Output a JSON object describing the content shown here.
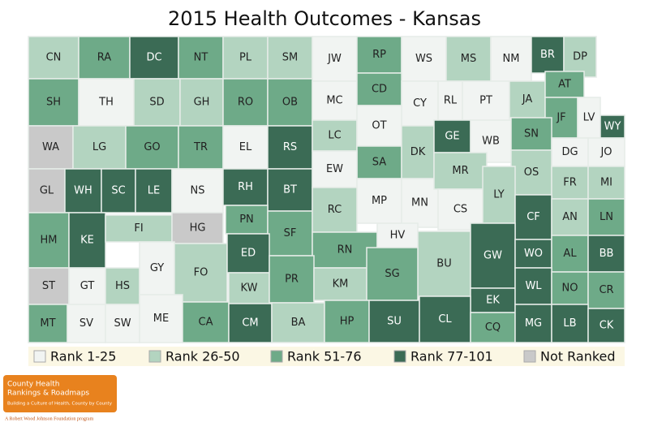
{
  "title": "2015 Health Outcomes - Kansas",
  "legend": [
    {
      "label": "Rank 1-25",
      "color": "#f1f4f2"
    },
    {
      "label": "Rank 26-50",
      "color": "#b3d4c0"
    },
    {
      "label": "Rank 51-76",
      "color": "#6eaa88"
    },
    {
      "label": "Rank 77-101",
      "color": "#3b6b55"
    },
    {
      "label": "Not Ranked",
      "color": "#c9c9c9"
    }
  ],
  "counties": [
    {
      "label": "CN",
      "color": "#b3d4c0"
    },
    {
      "label": "RA",
      "color": "#6eaa88"
    },
    {
      "label": "DC",
      "color": "#3b6b55"
    },
    {
      "label": "NT",
      "color": "#6eaa88"
    },
    {
      "label": "PL",
      "color": "#b3d4c0"
    },
    {
      "label": "SM",
      "color": "#b3d4c0"
    },
    {
      "label": "JW",
      "color": "#f1f4f2"
    },
    {
      "label": "RP",
      "color": "#6eaa88"
    },
    {
      "label": "WS",
      "color": "#f1f4f2"
    },
    {
      "label": "MS",
      "color": "#b3d4c0"
    },
    {
      "label": "NM",
      "color": "#f1f4f2"
    },
    {
      "label": "BR",
      "color": "#3b6b55"
    },
    {
      "label": "DP",
      "color": "#b3d4c0"
    },
    {
      "label": "SH",
      "color": "#6eaa88"
    },
    {
      "label": "TH",
      "color": "#f1f4f2"
    },
    {
      "label": "SD",
      "color": "#b3d4c0"
    },
    {
      "label": "GH",
      "color": "#b3d4c0"
    },
    {
      "label": "RO",
      "color": "#6eaa88"
    },
    {
      "label": "OB",
      "color": "#6eaa88"
    },
    {
      "label": "MC",
      "color": "#f1f4f2"
    },
    {
      "label": "CD",
      "color": "#6eaa88"
    },
    {
      "label": "CY",
      "color": "#f1f4f2"
    },
    {
      "label": "RL",
      "color": "#f1f4f2"
    },
    {
      "label": "PT",
      "color": "#f1f4f2"
    },
    {
      "label": "JA",
      "color": "#b3d4c0"
    },
    {
      "label": "AT",
      "color": "#6eaa88"
    },
    {
      "label": "JF",
      "color": "#6eaa88"
    },
    {
      "label": "LV",
      "color": "#f1f4f2"
    },
    {
      "label": "WY",
      "color": "#3b6b55"
    },
    {
      "label": "WA",
      "color": "#c9c9c9"
    },
    {
      "label": "LG",
      "color": "#b3d4c0"
    },
    {
      "label": "GO",
      "color": "#6eaa88"
    },
    {
      "label": "TR",
      "color": "#6eaa88"
    },
    {
      "label": "EL",
      "color": "#f1f4f2"
    },
    {
      "label": "RS",
      "color": "#3b6b55"
    },
    {
      "label": "LC",
      "color": "#b3d4c0"
    },
    {
      "label": "OT",
      "color": "#f1f4f2"
    },
    {
      "label": "SA",
      "color": "#6eaa88"
    },
    {
      "label": "DK",
      "color": "#b3d4c0"
    },
    {
      "label": "GE",
      "color": "#3b6b55"
    },
    {
      "label": "WB",
      "color": "#f1f4f2"
    },
    {
      "label": "SN",
      "color": "#6eaa88"
    },
    {
      "label": "DG",
      "color": "#f1f4f2"
    },
    {
      "label": "JO",
      "color": "#f1f4f2"
    },
    {
      "label": "OS",
      "color": "#b3d4c0"
    },
    {
      "label": "FR",
      "color": "#b3d4c0"
    },
    {
      "label": "MI",
      "color": "#b3d4c0"
    },
    {
      "label": "GL",
      "color": "#c9c9c9"
    },
    {
      "label": "WH",
      "color": "#3b6b55"
    },
    {
      "label": "SC",
      "color": "#3b6b55"
    },
    {
      "label": "LE",
      "color": "#3b6b55"
    },
    {
      "label": "NS",
      "color": "#f1f4f2"
    },
    {
      "label": "RH",
      "color": "#3b6b55"
    },
    {
      "label": "BT",
      "color": "#3b6b55"
    },
    {
      "label": "EW",
      "color": "#f1f4f2"
    },
    {
      "label": "MP",
      "color": "#f1f4f2"
    },
    {
      "label": "MN",
      "color": "#f1f4f2"
    },
    {
      "label": "MR",
      "color": "#b3d4c0"
    },
    {
      "label": "CS",
      "color": "#f1f4f2"
    },
    {
      "label": "LY",
      "color": "#b3d4c0"
    },
    {
      "label": "CF",
      "color": "#3b6b55"
    },
    {
      "label": "AN",
      "color": "#b3d4c0"
    },
    {
      "label": "LN",
      "color": "#6eaa88"
    },
    {
      "label": "HM",
      "color": "#6eaa88"
    },
    {
      "label": "KE",
      "color": "#3b6b55"
    },
    {
      "label": "FI",
      "color": "#b3d4c0"
    },
    {
      "label": "HG",
      "color": "#c9c9c9"
    },
    {
      "label": "PN",
      "color": "#6eaa88"
    },
    {
      "label": "SF",
      "color": "#6eaa88"
    },
    {
      "label": "RC",
      "color": "#b3d4c0"
    },
    {
      "label": "RN",
      "color": "#6eaa88"
    },
    {
      "label": "HV",
      "color": "#f1f4f2"
    },
    {
      "label": "BU",
      "color": "#b3d4c0"
    },
    {
      "label": "GW",
      "color": "#3b6b55"
    },
    {
      "label": "WO",
      "color": "#3b6b55"
    },
    {
      "label": "AL",
      "color": "#6eaa88"
    },
    {
      "label": "BB",
      "color": "#3b6b55"
    },
    {
      "label": "ST",
      "color": "#c9c9c9"
    },
    {
      "label": "GT",
      "color": "#f1f4f2"
    },
    {
      "label": "HS",
      "color": "#b3d4c0"
    },
    {
      "label": "GY",
      "color": "#f1f4f2"
    },
    {
      "label": "FO",
      "color": "#b3d4c0"
    },
    {
      "label": "ED",
      "color": "#3b6b55"
    },
    {
      "label": "KW",
      "color": "#b3d4c0"
    },
    {
      "label": "PR",
      "color": "#6eaa88"
    },
    {
      "label": "KM",
      "color": "#b3d4c0"
    },
    {
      "label": "SG",
      "color": "#6eaa88"
    },
    {
      "label": "EK",
      "color": "#3b6b55"
    },
    {
      "label": "WL",
      "color": "#3b6b55"
    },
    {
      "label": "NO",
      "color": "#6eaa88"
    },
    {
      "label": "CR",
      "color": "#6eaa88"
    },
    {
      "label": "MT",
      "color": "#6eaa88"
    },
    {
      "label": "SV",
      "color": "#f1f4f2"
    },
    {
      "label": "SW",
      "color": "#f1f4f2"
    },
    {
      "label": "ME",
      "color": "#f1f4f2"
    },
    {
      "label": "CA",
      "color": "#6eaa88"
    },
    {
      "label": "CM",
      "color": "#3b6b55"
    },
    {
      "label": "BA",
      "color": "#b3d4c0"
    },
    {
      "label": "HP",
      "color": "#6eaa88"
    },
    {
      "label": "SU",
      "color": "#3b6b55"
    },
    {
      "label": "CL",
      "color": "#3b6b55"
    },
    {
      "label": "CQ",
      "color": "#6eaa88"
    },
    {
      "label": "MG",
      "color": "#3b6b55"
    },
    {
      "label": "LB",
      "color": "#3b6b55"
    },
    {
      "label": "CK",
      "color": "#3b6b55"
    }
  ],
  "logo": {
    "line1": "County Health",
    "line2": "Rankings & Roadmaps",
    "tagline": "Building a Culture of Health, County by County",
    "sponsor": "A Robert Wood Johnson Foundation program"
  }
}
